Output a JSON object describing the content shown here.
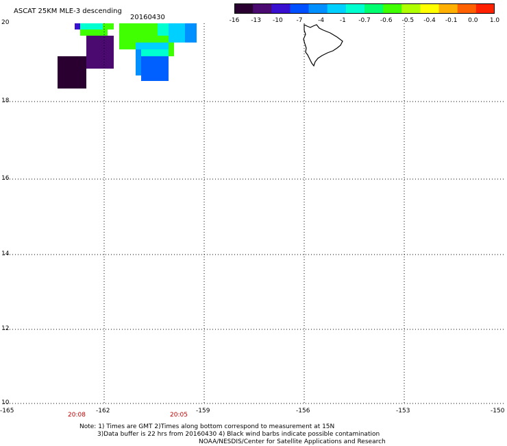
{
  "title": "ASCAT 25KM MLE-3 descending",
  "date": "20160430",
  "colorbar": {
    "colors": [
      "#2a0030",
      "#4a0a70",
      "#3a10d0",
      "#0050ff",
      "#0090ff",
      "#00d0ff",
      "#00ffd0",
      "#00ff70",
      "#40ff00",
      "#b0ff00",
      "#ffff00",
      "#ffb000",
      "#ff6000",
      "#ff2000"
    ],
    "labels": [
      "-16",
      "-13",
      "-10",
      "-7",
      "-4",
      "-1",
      "-0.7",
      "-0.6",
      "-0.5",
      "-0.4",
      "-0.1",
      "0.0",
      "1.0"
    ]
  },
  "axes": {
    "lon_labels": [
      "-165",
      "-162",
      "-159",
      "-156",
      "-153",
      "-150"
    ],
    "lat_labels": [
      "20",
      "18",
      "16",
      "14",
      "12",
      "10"
    ]
  },
  "times": [
    "20:08",
    "20:05"
  ],
  "notes": [
    "Note: 1) Times are GMT 2)Times along bottom correspond to measurement at 15N",
    "3)Data buffer is 22 hrs from 20160430 4) Black wind barbs indicate possible contamination",
    "NOAA/NESDIS/Center for Satellite Applications and Research"
  ]
}
